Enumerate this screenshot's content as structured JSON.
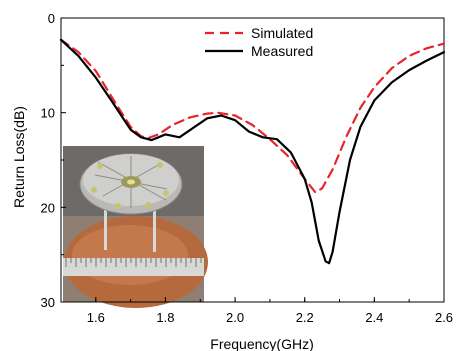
{
  "chart_data": {
    "type": "line",
    "title": "",
    "xlabel": "Frequency(GHz)",
    "ylabel": "Return Loss(dB)",
    "xlim": [
      1.5,
      2.6
    ],
    "ylim": [
      0,
      30
    ],
    "y_inverted": true,
    "x_ticks": [
      1.6,
      1.8,
      2.0,
      2.2,
      2.4,
      2.6
    ],
    "x_tick_labels": [
      "1.6",
      "1.8",
      "2.0",
      "2.2",
      "2.4",
      "2.6"
    ],
    "y_ticks": [
      0,
      10,
      20,
      30
    ],
    "y_tick_labels": [
      "0",
      "10",
      "20",
      "30"
    ],
    "grid": false,
    "legend_position": "top-right",
    "inset": "photograph of the fabricated antenna on a ruler",
    "series": [
      {
        "name": "Simulated",
        "color": "#e8242b",
        "style": "dashed",
        "x": [
          1.5,
          1.55,
          1.6,
          1.65,
          1.7,
          1.73,
          1.75,
          1.78,
          1.82,
          1.87,
          1.92,
          1.95,
          2.0,
          2.05,
          2.1,
          2.15,
          2.2,
          2.23,
          2.25,
          2.28,
          2.32,
          2.36,
          2.4,
          2.45,
          2.5,
          2.55,
          2.6
        ],
        "y": [
          2.3,
          3.6,
          5.6,
          8.6,
          11.5,
          12.5,
          12.7,
          12.3,
          11.3,
          10.5,
          10.1,
          10.0,
          10.3,
          11.3,
          12.8,
          14.5,
          17.0,
          18.4,
          18.0,
          16.0,
          12.5,
          9.5,
          7.3,
          5.3,
          4.0,
          3.2,
          2.7
        ]
      },
      {
        "name": "Measured",
        "color": "#000000",
        "style": "solid",
        "x": [
          1.5,
          1.55,
          1.6,
          1.65,
          1.7,
          1.73,
          1.76,
          1.78,
          1.8,
          1.84,
          1.88,
          1.92,
          1.96,
          2.0,
          2.04,
          2.08,
          2.12,
          2.16,
          2.2,
          2.22,
          2.24,
          2.26,
          2.27,
          2.28,
          2.3,
          2.33,
          2.36,
          2.4,
          2.45,
          2.5,
          2.55,
          2.6
        ],
        "y": [
          2.3,
          4.0,
          6.3,
          9.0,
          11.8,
          12.6,
          12.9,
          12.6,
          12.3,
          12.6,
          11.6,
          10.6,
          10.3,
          10.8,
          12.0,
          12.6,
          12.8,
          14.2,
          17.0,
          19.5,
          23.5,
          25.7,
          25.9,
          24.7,
          20.5,
          15.0,
          11.5,
          8.7,
          6.8,
          5.5,
          4.5,
          3.6
        ]
      }
    ]
  }
}
